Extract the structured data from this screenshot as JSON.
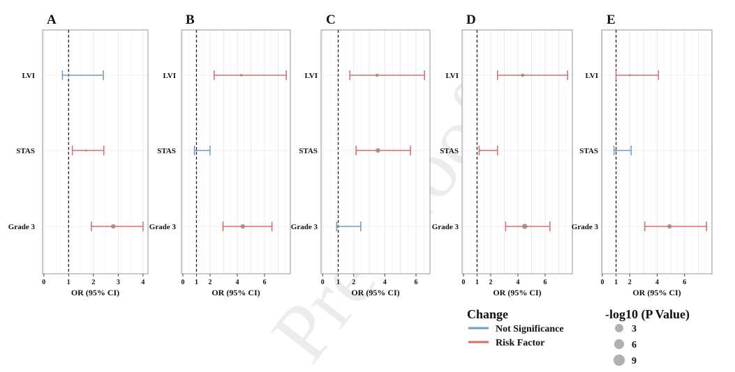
{
  "chart_data": [
    {
      "type": "forest",
      "panel_label": "A",
      "xlabel": "OR (95% CI)",
      "xlim": [
        -0.05,
        4.2
      ],
      "xticks": [
        0,
        1,
        2,
        3,
        4
      ],
      "reference_line": 1,
      "rows": [
        {
          "label": "LVI",
          "or": 1.0,
          "lower": 0.75,
          "upper": 2.4,
          "change": "Not Significance",
          "neglog10p": 1
        },
        {
          "label": "STAS",
          "or": 1.7,
          "lower": 1.15,
          "upper": 2.42,
          "change": "Risk Factor",
          "neglog10p": 1
        },
        {
          "label": "Grade 3",
          "or": 2.8,
          "lower": 1.92,
          "upper": 4.0,
          "change": "Risk Factor",
          "neglog10p": 5
        }
      ]
    },
    {
      "type": "forest",
      "panel_label": "B",
      "xlabel": "OR (95% CI)",
      "xlim": [
        -0.1,
        7.9
      ],
      "xticks": [
        0,
        1,
        2,
        4,
        6
      ],
      "reference_line": 1,
      "rows": [
        {
          "label": "LVI",
          "or": 4.3,
          "lower": 2.3,
          "upper": 7.6,
          "change": "Risk Factor",
          "neglog10p": 2
        },
        {
          "label": "STAS",
          "or": 1.0,
          "lower": 0.85,
          "upper": 2.0,
          "change": "Not Significance",
          "neglog10p": 1
        },
        {
          "label": "Grade 3",
          "or": 4.4,
          "lower": 2.95,
          "upper": 6.55,
          "change": "Risk Factor",
          "neglog10p": 5
        }
      ]
    },
    {
      "type": "forest",
      "panel_label": "C",
      "xlabel": "OR (95% CI)",
      "xlim": [
        -0.1,
        6.9
      ],
      "xticks": [
        0,
        1,
        2,
        4,
        6
      ],
      "reference_line": 1,
      "rows": [
        {
          "label": "LVI",
          "or": 3.5,
          "lower": 1.75,
          "upper": 6.55,
          "change": "Risk Factor",
          "neglog10p": 3
        },
        {
          "label": "STAS",
          "or": 3.55,
          "lower": 2.15,
          "upper": 5.65,
          "change": "Risk Factor",
          "neglog10p": 5
        },
        {
          "label": "Grade 3",
          "or": 0.95,
          "lower": 0.9,
          "upper": 2.45,
          "change": "Not Significance",
          "neglog10p": 1
        }
      ]
    },
    {
      "type": "forest",
      "panel_label": "D",
      "xlabel": "OR (95% CI)",
      "xlim": [
        -0.1,
        8.0
      ],
      "xticks": [
        0,
        1,
        2,
        4,
        6
      ],
      "reference_line": 1,
      "rows": [
        {
          "label": "LVI",
          "or": 4.35,
          "lower": 2.5,
          "upper": 7.65,
          "change": "Risk Factor",
          "neglog10p": 3
        },
        {
          "label": "STAS",
          "or": 1.2,
          "lower": 1.15,
          "upper": 2.5,
          "change": "Risk Factor",
          "neglog10p": 1
        },
        {
          "label": "Grade 3",
          "or": 4.5,
          "lower": 3.1,
          "upper": 6.35,
          "change": "Risk Factor",
          "neglog10p": 6
        }
      ]
    },
    {
      "type": "forest",
      "panel_label": "E",
      "xlabel": "OR (95% CI)",
      "xlim": [
        -0.05,
        8.0
      ],
      "xticks": [
        0,
        1,
        2,
        4,
        6
      ],
      "reference_line": 1,
      "rows": [
        {
          "label": "LVI",
          "or": 2.0,
          "lower": 1.0,
          "upper": 4.1,
          "change": "Risk Factor",
          "neglog10p": 1
        },
        {
          "label": "STAS",
          "or": 1.0,
          "lower": 0.85,
          "upper": 2.1,
          "change": "Not Significance",
          "neglog10p": 1
        },
        {
          "label": "Grade 3",
          "or": 4.9,
          "lower": 3.1,
          "upper": 7.6,
          "change": "Risk Factor",
          "neglog10p": 5
        }
      ]
    }
  ],
  "legend": {
    "change_title": "Change",
    "change_items": [
      {
        "label": "Not Significance",
        "color": "#6a9ec6"
      },
      {
        "label": "Risk Factor",
        "color": "#d86a6a"
      }
    ],
    "size_title": "-log10 (P Value)",
    "size_items": [
      {
        "label": "3",
        "value": 3
      },
      {
        "label": "6",
        "value": 6
      },
      {
        "label": "9",
        "value": 9
      }
    ]
  },
  "colors": {
    "Not Significance": "#6a9ec6",
    "Risk Factor": "#d86a6a",
    "point": "#a98585",
    "legend_point": "#b0b0b0"
  },
  "watermark": "Pre-proofs"
}
